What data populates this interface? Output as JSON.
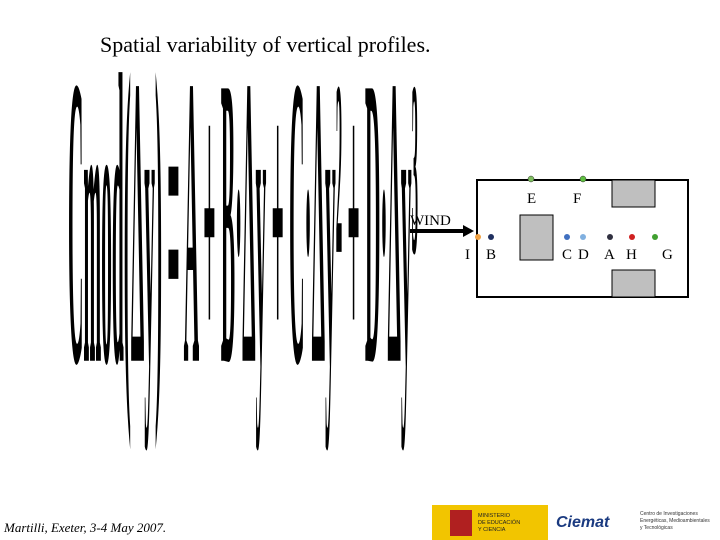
{
  "header": {
    "title": "Spatial variability of vertical profiles."
  },
  "formula": "Cmod(Δy) = A + B·Δy + C·Δy² + D·Δy³",
  "diagram": {
    "wind": "WIND",
    "sensors_top": [
      "E",
      "F"
    ],
    "sensors_bottom": [
      "I",
      "B",
      "C",
      "D",
      "A",
      "H",
      "G"
    ]
  },
  "footer": {
    "author": "Martilli, Exeter, 3-4 May 2007.",
    "logo_ministry": [
      "MINISTERIO",
      "DE EDUCACIÓN",
      "Y CIENCIA"
    ],
    "logo_ciemat": "Ciemat",
    "logo_ciemat_sub": [
      "Centro de Investigaciones",
      "Energéticas, Medioambientales",
      "y Tecnológicas"
    ]
  }
}
